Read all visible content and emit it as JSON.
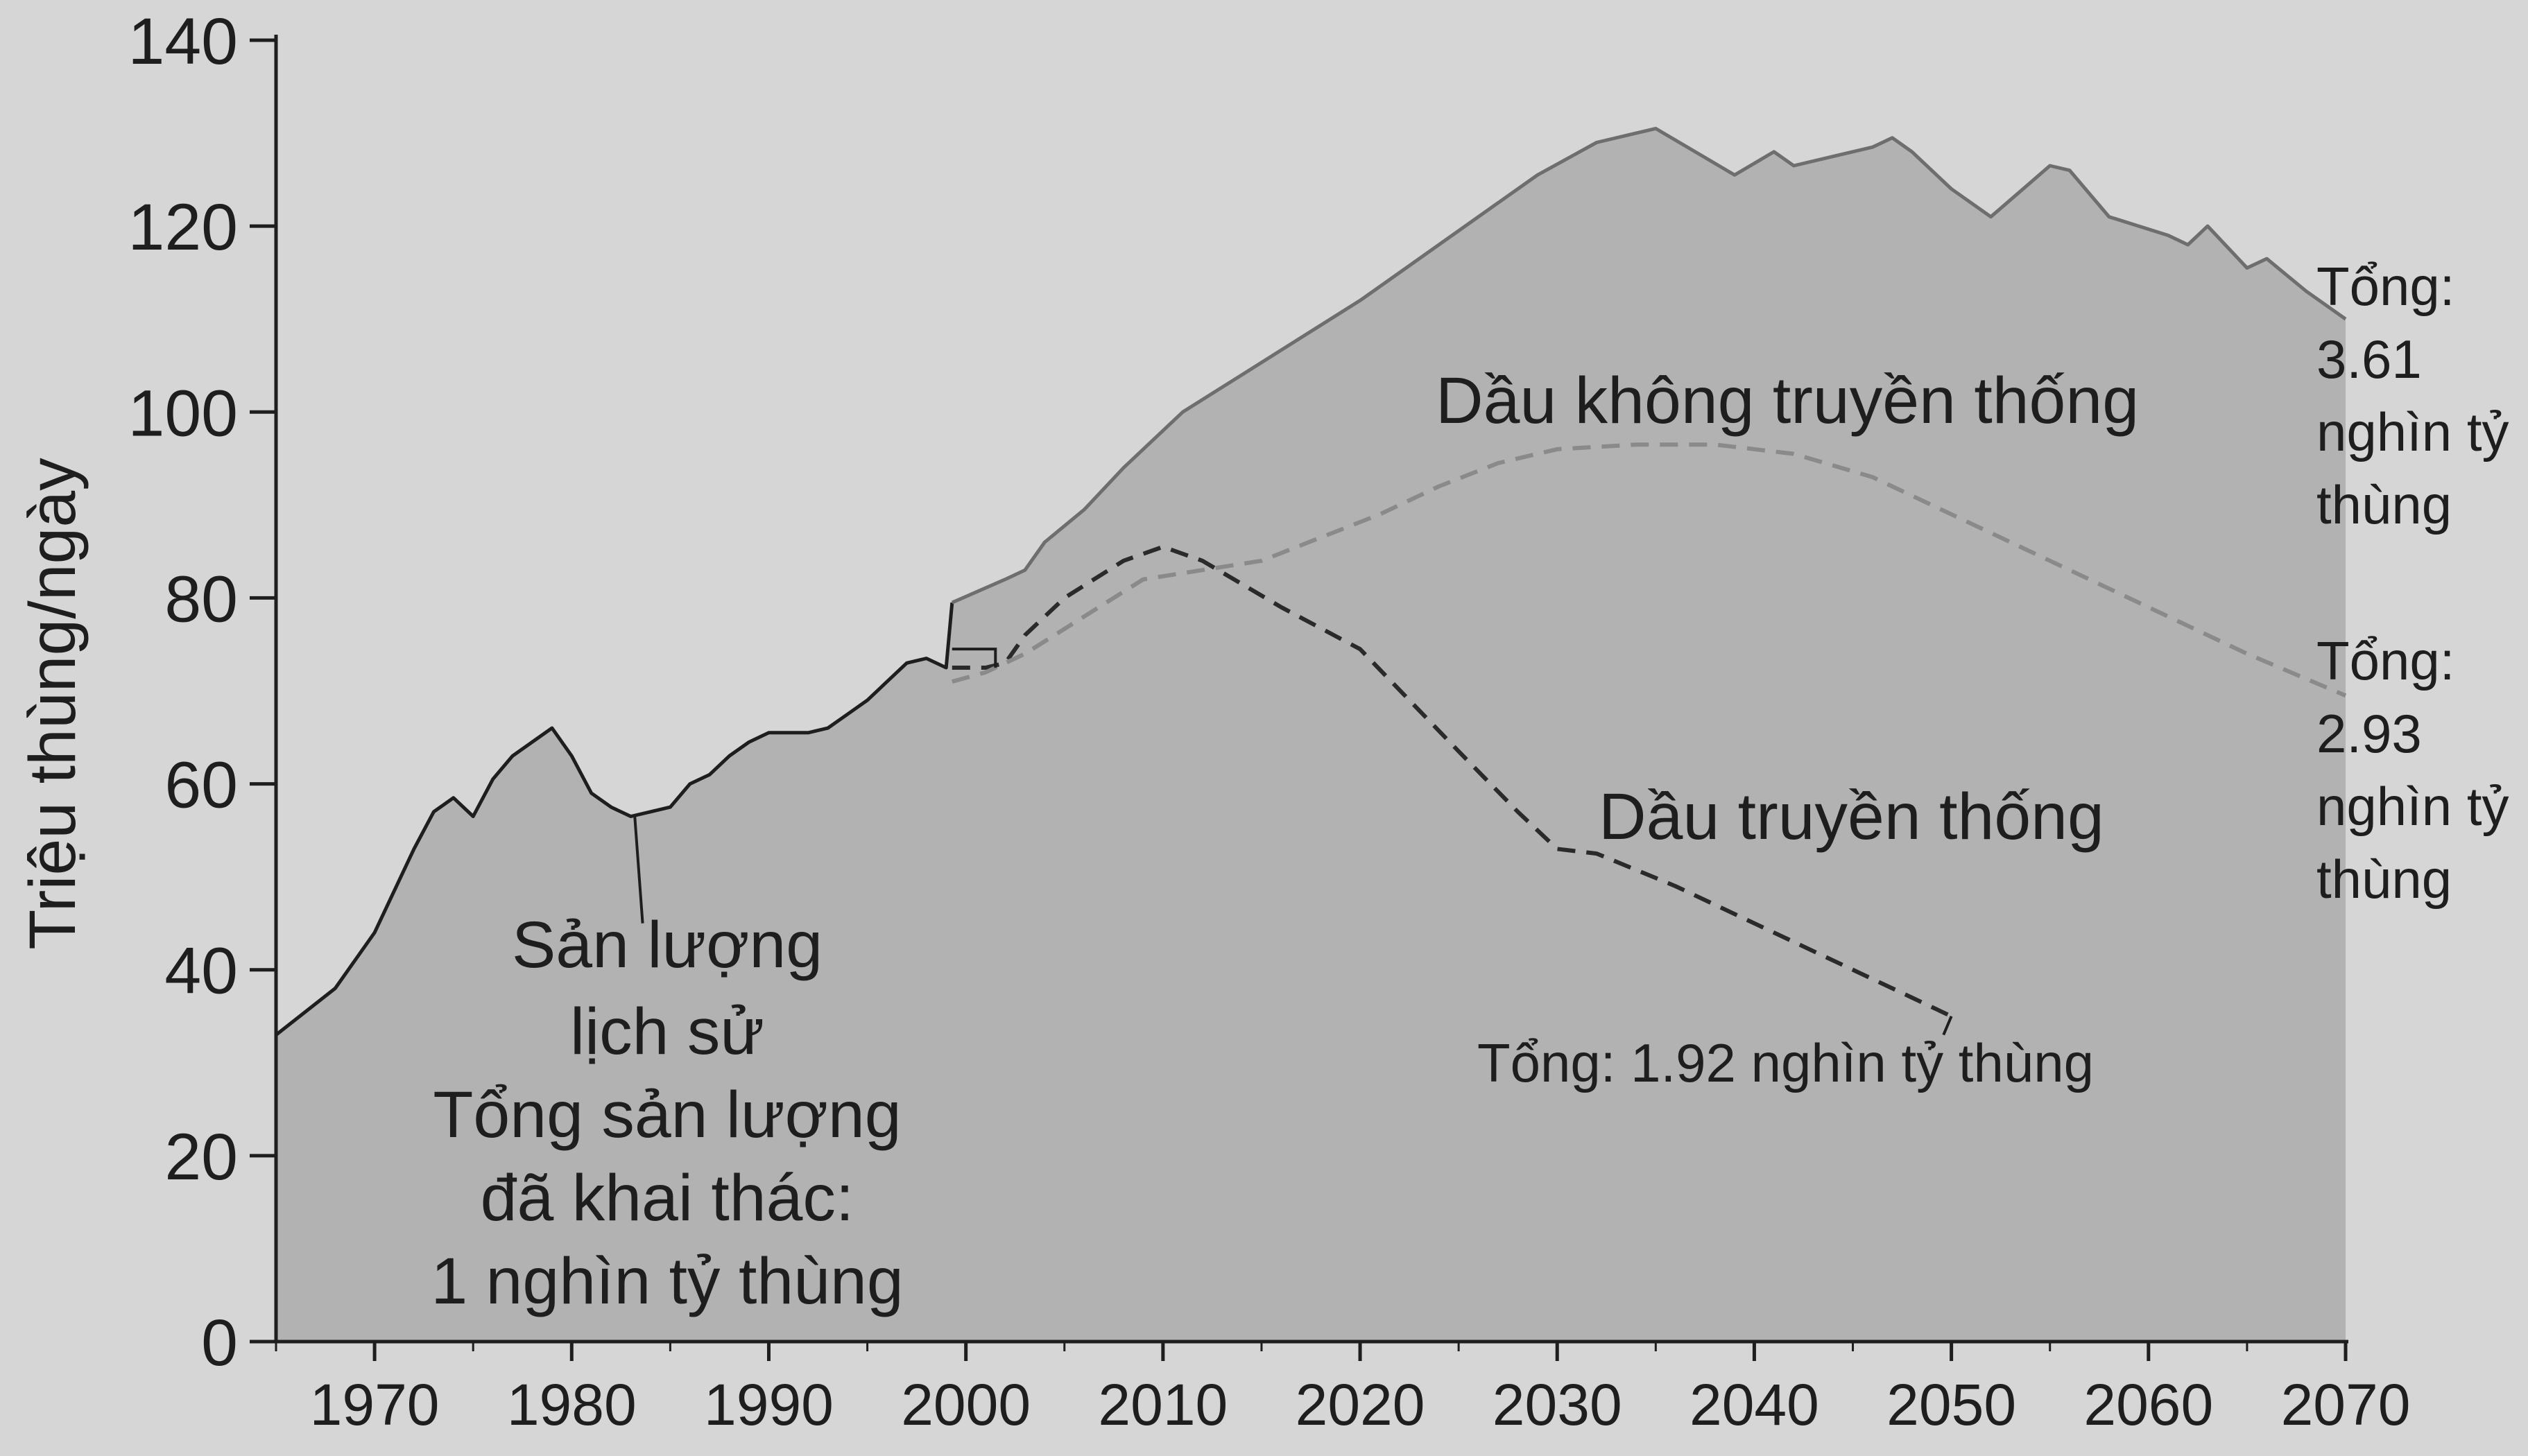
{
  "chart_data": {
    "type": "area",
    "title": "",
    "xlabel": "",
    "ylabel": "Triệu thùng/ngày",
    "xlim": [
      1965,
      2070
    ],
    "ylim": [
      0,
      140
    ],
    "grid": false,
    "x_ticks": [
      "1970",
      "1980",
      "1990",
      "2000",
      "2010",
      "2020",
      "2030",
      "2040",
      "2050",
      "2060",
      "2070"
    ],
    "y_ticks": [
      "0",
      "20",
      "40",
      "60",
      "80",
      "100",
      "120",
      "140"
    ],
    "colors": {
      "background": "#d6d6d6",
      "area_fill": "#b2b2b2",
      "total_line": "#6e6e6e",
      "conventional_line": "#2a2a2a",
      "unconventional_line": "#8a8a8a",
      "axis": "#1e1e1e"
    },
    "series": [
      {
        "name": "Sản lượng lịch sử",
        "style": "solid",
        "points": [
          [
            1965,
            33
          ],
          [
            1968,
            38
          ],
          [
            1970,
            44
          ],
          [
            1972,
            53
          ],
          [
            1973,
            57
          ],
          [
            1974,
            58.5
          ],
          [
            1975,
            56.5
          ],
          [
            1976,
            60.5
          ],
          [
            1977,
            63
          ],
          [
            1978,
            64.5
          ],
          [
            1979,
            66
          ],
          [
            1980,
            63
          ],
          [
            1981,
            59
          ],
          [
            1982,
            57.5
          ],
          [
            1983,
            56.5
          ],
          [
            1984,
            57
          ],
          [
            1985,
            57.5
          ],
          [
            1986,
            60
          ],
          [
            1987,
            61
          ],
          [
            1988,
            63
          ],
          [
            1989,
            64.5
          ],
          [
            1990,
            65.5
          ],
          [
            1991,
            65.5
          ],
          [
            1992,
            65.5
          ],
          [
            1993,
            66
          ],
          [
            1994,
            67.5
          ],
          [
            1995,
            69
          ],
          [
            1996,
            71
          ],
          [
            1997,
            73
          ],
          [
            1998,
            73.5
          ],
          [
            1999,
            72.5
          ],
          [
            1999.3,
            79.5
          ]
        ]
      },
      {
        "name": "Dầu truyền thống",
        "style": "dashed",
        "points": [
          [
            1999.3,
            72.5
          ],
          [
            2001,
            72.5
          ],
          [
            2002,
            73
          ],
          [
            2003,
            76
          ],
          [
            2005,
            80
          ],
          [
            2008,
            84
          ],
          [
            2010,
            85.5
          ],
          [
            2012,
            84
          ],
          [
            2016,
            79
          ],
          [
            2020,
            74.5
          ],
          [
            2025,
            63.5
          ],
          [
            2028,
            57
          ],
          [
            2030,
            53
          ],
          [
            2032,
            52.5
          ],
          [
            2036,
            49
          ],
          [
            2040,
            45
          ],
          [
            2044,
            41
          ],
          [
            2048,
            37
          ],
          [
            2050,
            35
          ]
        ]
      },
      {
        "name": "Dầu không truyền thống",
        "style": "dashed",
        "points": [
          [
            1999.3,
            71
          ],
          [
            2001,
            72
          ],
          [
            2003,
            74
          ],
          [
            2006,
            78
          ],
          [
            2009,
            82
          ],
          [
            2012,
            83
          ],
          [
            2015,
            84
          ],
          [
            2018,
            86.5
          ],
          [
            2021,
            89
          ],
          [
            2024,
            92
          ],
          [
            2027,
            94.5
          ],
          [
            2030,
            96
          ],
          [
            2034,
            96.5
          ],
          [
            2038,
            96.5
          ],
          [
            2042,
            95.5
          ],
          [
            2046,
            93
          ],
          [
            2050,
            89
          ],
          [
            2055,
            84
          ],
          [
            2060,
            79
          ],
          [
            2065,
            74
          ],
          [
            2070,
            69.5
          ]
        ]
      },
      {
        "name": "Tổng",
        "style": "solid",
        "points": [
          [
            1999.3,
            79.5
          ],
          [
            2002,
            82
          ],
          [
            2003,
            83
          ],
          [
            2004,
            86
          ],
          [
            2006,
            89.5
          ],
          [
            2008,
            94
          ],
          [
            2011,
            100
          ],
          [
            2014,
            104
          ],
          [
            2017,
            108
          ],
          [
            2020,
            112
          ],
          [
            2023,
            116.5
          ],
          [
            2026,
            121
          ],
          [
            2029,
            125.5
          ],
          [
            2032,
            129
          ],
          [
            2034,
            130
          ],
          [
            2035,
            130.5
          ],
          [
            2037,
            128
          ],
          [
            2039,
            125.5
          ],
          [
            2041,
            128
          ],
          [
            2042,
            126.5
          ],
          [
            2044,
            127.5
          ],
          [
            2046,
            128.5
          ],
          [
            2047,
            129.5
          ],
          [
            2048,
            128
          ],
          [
            2050,
            124
          ],
          [
            2052,
            121
          ],
          [
            2055,
            126.5
          ],
          [
            2056,
            126
          ],
          [
            2058,
            121
          ],
          [
            2061,
            119
          ],
          [
            2062,
            118
          ],
          [
            2063,
            120
          ],
          [
            2065,
            115.5
          ],
          [
            2066,
            116.5
          ],
          [
            2068,
            113
          ],
          [
            2070,
            110
          ]
        ]
      }
    ],
    "annotations": {
      "unconventional_label": "Dầu không truyền thống",
      "conventional_label": "Dầu truyền thống",
      "conventional_total": "Tổng: 1.92 nghìn tỷ thùng",
      "historical_lines": [
        "Sản lượng",
        "lịch sử",
        "Tổng sản lượng",
        "đã khai thác:",
        "1 nghìn tỷ thùng"
      ],
      "total_all_lines": [
        "Tổng:",
        "3.61",
        "nghìn tỷ",
        "thùng"
      ],
      "total_unconventional_lines": [
        "Tổng:",
        "2.93",
        "nghìn tỷ",
        "thùng"
      ]
    }
  }
}
